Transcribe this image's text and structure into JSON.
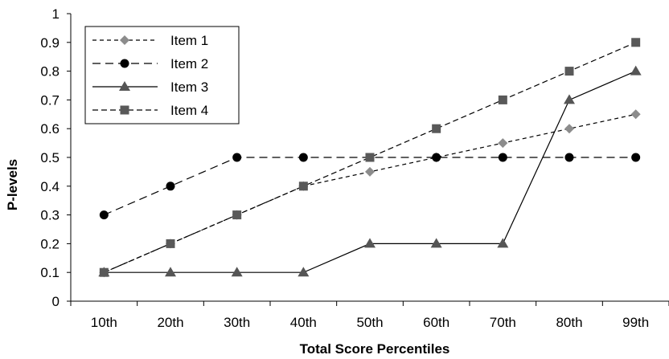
{
  "chart_data": {
    "type": "line",
    "xlabel": "Total Score Percentiles",
    "ylabel": "P-levels",
    "categories": [
      "10th",
      "20th",
      "30th",
      "40th",
      "50th",
      "60th",
      "70th",
      "80th",
      "99th"
    ],
    "ylim": [
      0,
      1
    ],
    "yticks": [
      "0",
      "0.1",
      "0.2",
      "0.3",
      "0.4",
      "0.5",
      "0.6",
      "0.7",
      "0.8",
      "0.9",
      "1"
    ],
    "grid": false,
    "legend_position": "top-left",
    "series": [
      {
        "name": "Item 1",
        "values": [
          0.1,
          0.2,
          0.3,
          0.4,
          0.45,
          0.5,
          0.55,
          0.6,
          0.65
        ],
        "line": "short-dash",
        "marker": "diamond",
        "color": "#8c8c8c"
      },
      {
        "name": "Item 2",
        "values": [
          0.3,
          0.4,
          0.5,
          0.5,
          0.5,
          0.5,
          0.5,
          0.5,
          0.5
        ],
        "line": "long-dash",
        "marker": "circle",
        "color": "#000000"
      },
      {
        "name": "Item 3",
        "values": [
          0.1,
          0.1,
          0.1,
          0.1,
          0.2,
          0.2,
          0.2,
          0.7,
          0.8
        ],
        "line": "solid",
        "marker": "triangle",
        "color": "#555555"
      },
      {
        "name": "Item 4",
        "values": [
          0.1,
          0.2,
          0.3,
          0.4,
          0.5,
          0.6,
          0.7,
          0.8,
          0.9
        ],
        "line": "dash",
        "marker": "square",
        "color": "#595959"
      }
    ]
  }
}
